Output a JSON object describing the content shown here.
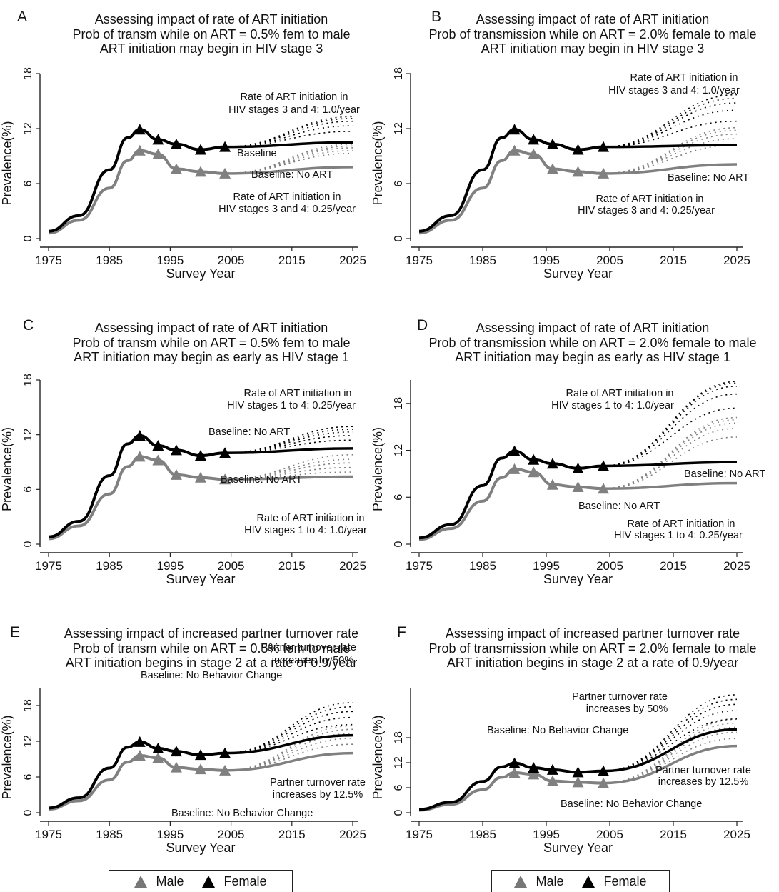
{
  "colors": {
    "male": "#808080",
    "female": "#000000",
    "axis": "#222222"
  },
  "legend": {
    "male_label": "Male",
    "female_label": "Female"
  },
  "chart_data": [
    {
      "panel": "A",
      "type": "line",
      "title": "Assessing impact of rate of ART initiation",
      "subtitle": [
        "Prob of transm while on ART = 0.5% fem to male",
        "ART initiation may begin in HIV stage 3"
      ],
      "xlabel": "Survey Year",
      "ylabel": "Prevalence(%)",
      "xlim": [
        1975,
        2025
      ],
      "ylim": [
        0,
        18
      ],
      "xticks": [
        1975,
        1985,
        1995,
        2005,
        2015,
        2025
      ],
      "yticks": [
        0,
        6,
        12,
        18
      ],
      "series": [
        {
          "name": "Female",
          "x": [
            1975,
            1980,
            1985,
            1988,
            1990,
            1993,
            1996,
            2000,
            2004
          ],
          "values": [
            0.8,
            2.5,
            7.5,
            11,
            11.9,
            10.8,
            10.3,
            9.7,
            10
          ]
        },
        {
          "name": "Male",
          "x": [
            1975,
            1980,
            1985,
            1988,
            1990,
            1993,
            1996,
            2000,
            2004
          ],
          "values": [
            0.6,
            2,
            5.5,
            8.5,
            9.6,
            9.2,
            7.6,
            7.3,
            7.1
          ]
        }
      ],
      "projection_start": 2004,
      "projection_end": 2025,
      "female_end_values": [
        10.5,
        11.7,
        12.3,
        12.8,
        13.1,
        13.3
      ],
      "male_end_values": [
        7.8,
        9.3,
        9.6,
        9.9,
        10.1,
        10.3
      ],
      "annotations": [
        "Rate of ART initiation in",
        "HIV stages 3 and 4: 1.0/year",
        "Baseline",
        "Baseline: No ART",
        "Rate of ART initiation in",
        "HIV stages 3 and 4: 0.25/year"
      ]
    },
    {
      "panel": "B",
      "type": "line",
      "title": "Assessing impact of rate of ART initiation",
      "subtitle": [
        "Prob of transmission while on ART = 2.0% female to male",
        "ART initiation may begin in HIV stage 3"
      ],
      "xlabel": "Survey Year",
      "ylabel": "Prevalence(%)",
      "xlim": [
        1975,
        2025
      ],
      "ylim": [
        0,
        18
      ],
      "xticks": [
        1975,
        1985,
        1995,
        2005,
        2015,
        2025
      ],
      "yticks": [
        0,
        6,
        12,
        18
      ],
      "series": [
        {
          "name": "Female",
          "x": [
            1975,
            1980,
            1985,
            1988,
            1990,
            1993,
            1996,
            2000,
            2004
          ],
          "values": [
            0.8,
            2.5,
            7.5,
            11,
            11.9,
            10.8,
            10.3,
            9.7,
            10
          ]
        },
        {
          "name": "Male",
          "x": [
            1975,
            1980,
            1985,
            1988,
            1990,
            1993,
            1996,
            2000,
            2004
          ],
          "values": [
            0.6,
            2,
            5.5,
            8.5,
            9.6,
            9.2,
            7.6,
            7.3,
            7.1
          ]
        }
      ],
      "projection_start": 2004,
      "projection_end": 2025,
      "female_end_values": [
        10.2,
        12.8,
        14,
        14.8,
        15.3,
        15.7
      ],
      "male_end_values": [
        8.1,
        10.2,
        10.9,
        11.4,
        11.8,
        12.1
      ],
      "annotations": [
        "Rate of ART initiation in",
        "HIV stages 3 and 4: 1.0/year",
        "Baseline: No ART",
        "Rate of ART initiation in",
        "HIV stages 3 and 4: 0.25/year"
      ]
    },
    {
      "panel": "C",
      "type": "line",
      "title": "Assessing impact of rate of ART initiation",
      "subtitle": [
        "Prob of transm while on ART = 0.5% fem to male",
        "ART initiation may begin as early as HIV stage 1"
      ],
      "xlabel": "Survey Year",
      "ylabel": "Prevalence(%)",
      "xlim": [
        1975,
        2025
      ],
      "ylim": [
        0,
        18
      ],
      "xticks": [
        1975,
        1985,
        1995,
        2005,
        2015,
        2025
      ],
      "yticks": [
        0,
        6,
        12,
        18
      ],
      "series": [
        {
          "name": "Female",
          "x": [
            1975,
            1980,
            1985,
            1988,
            1990,
            1993,
            1996,
            2000,
            2004
          ],
          "values": [
            0.8,
            2.5,
            7.5,
            11,
            11.9,
            10.8,
            10.3,
            9.7,
            10
          ]
        },
        {
          "name": "Male",
          "x": [
            1975,
            1980,
            1985,
            1988,
            1990,
            1993,
            1996,
            2000,
            2004
          ],
          "values": [
            0.6,
            2,
            5.5,
            8.5,
            9.6,
            9.2,
            7.6,
            7.3,
            7.1
          ]
        }
      ],
      "projection_start": 2004,
      "projection_end": 2025,
      "female_end_values": [
        10.5,
        11.4,
        11.9,
        12.3,
        12.6,
        12.9
      ],
      "male_end_values": [
        7.4,
        7.9,
        8.4,
        8.9,
        9.3,
        9.8
      ],
      "annotations": [
        "Rate of ART initiation in",
        "HIV stages 1 to 4: 0.25/year",
        "Baseline: No ART",
        "Baseline: No ART",
        "Rate of ART initiation in",
        "HIV stages 1 to 4: 1.0/year"
      ]
    },
    {
      "panel": "D",
      "type": "line",
      "title": "Assessing impact of rate of ART initiation",
      "subtitle": [
        "Prob of transmission while on ART = 2.0% female to male",
        "ART initiation may begin as early as HIV stage 1"
      ],
      "xlabel": "Survey Year",
      "ylabel": "Prevalence(%)",
      "xlim": [
        1975,
        2025
      ],
      "ylim": [
        0,
        21
      ],
      "xticks": [
        1975,
        1985,
        1995,
        2005,
        2015,
        2025
      ],
      "yticks": [
        0,
        6,
        12,
        18
      ],
      "series": [
        {
          "name": "Female",
          "x": [
            1975,
            1980,
            1985,
            1988,
            1990,
            1993,
            1996,
            2000,
            2004
          ],
          "values": [
            0.8,
            2.5,
            7.5,
            11,
            11.9,
            10.8,
            10.3,
            9.7,
            10
          ]
        },
        {
          "name": "Male",
          "x": [
            1975,
            1980,
            1985,
            1988,
            1990,
            1993,
            1996,
            2000,
            2004
          ],
          "values": [
            0.6,
            2,
            5.5,
            8.5,
            9.6,
            9.2,
            7.6,
            7.3,
            7.1
          ]
        }
      ],
      "projection_start": 2004,
      "projection_end": 2025,
      "female_end_values": [
        10.5,
        17.4,
        19.2,
        20.2,
        20.6,
        20.8
      ],
      "male_end_values": [
        7.8,
        13.7,
        14.8,
        15.5,
        15.9,
        16.2
      ],
      "annotations": [
        "Rate of ART initiation in",
        "HIV stages 1 to 4: 1.0/year",
        "Baseline: No ART",
        "Baseline: No ART",
        "Rate of ART initiation in",
        "HIV stages 1 to 4: 0.25/year"
      ]
    },
    {
      "panel": "E",
      "type": "line",
      "title": "Assessing impact of increased partner turnover rate",
      "subtitle": [
        "Prob of transm while on ART = 0.5% fem to male",
        "ART initiation begins in stage 2 at a rate of 0.9/year"
      ],
      "xlabel": "Survey Year",
      "ylabel": "Prevalence(%)",
      "xlim": [
        1975,
        2025
      ],
      "ylim": [
        0,
        21
      ],
      "xticks": [
        1975,
        1985,
        1995,
        2005,
        2015,
        2025
      ],
      "yticks": [
        0,
        6,
        12,
        18
      ],
      "series": [
        {
          "name": "Female",
          "x": [
            1975,
            1980,
            1985,
            1988,
            1990,
            1993,
            1996,
            2000,
            2004
          ],
          "values": [
            0.8,
            2.5,
            7.5,
            11,
            11.9,
            10.8,
            10.3,
            9.7,
            10
          ]
        },
        {
          "name": "Male",
          "x": [
            1975,
            1980,
            1985,
            1988,
            1990,
            1993,
            1996,
            2000,
            2004
          ],
          "values": [
            0.6,
            2,
            5.5,
            8.5,
            9.6,
            9.2,
            7.6,
            7.3,
            7.1
          ]
        }
      ],
      "projection_start": 2004,
      "projection_end": 2025,
      "female_end_values": [
        13,
        14.8,
        16,
        17,
        17.8,
        18.5
      ],
      "male_end_values": [
        10,
        11.5,
        12.5,
        13.3,
        14,
        14.6
      ],
      "annotations": [
        "Partner turnover rate",
        "increases by 50%",
        "Baseline: No Behavior Change",
        "Partner turnover rate",
        "increases by 12.5%",
        "Baseline: No Behavior Change"
      ]
    },
    {
      "panel": "F",
      "type": "line",
      "title": "Assessing impact of increased partner turnover rate",
      "subtitle": [
        "Prob of transmission while on ART = 2.0% female to male",
        "ART initiation begins in stage 2 at a rate of 0.9/year"
      ],
      "xlabel": "Survey Year",
      "ylabel": "Prevalence(%)",
      "xlim": [
        1975,
        2025
      ],
      "ylim": [
        0,
        30
      ],
      "xticks": [
        1975,
        1985,
        1995,
        2005,
        2015,
        2025
      ],
      "yticks": [
        0,
        6,
        12,
        18
      ],
      "series": [
        {
          "name": "Female",
          "x": [
            1975,
            1980,
            1985,
            1988,
            1990,
            1993,
            1996,
            2000,
            2004
          ],
          "values": [
            0.8,
            2.5,
            7.5,
            11,
            11.9,
            10.8,
            10.3,
            9.7,
            10
          ]
        },
        {
          "name": "Male",
          "x": [
            1975,
            1980,
            1985,
            1988,
            1990,
            1993,
            1996,
            2000,
            2004
          ],
          "values": [
            0.6,
            2,
            5.5,
            8.5,
            9.6,
            9.2,
            7.6,
            7.3,
            7.1
          ]
        }
      ],
      "projection_start": 2004,
      "projection_end": 2025,
      "female_end_values": [
        20,
        22.5,
        24.5,
        26,
        27.2,
        28.3
      ],
      "male_end_values": [
        16,
        17.8,
        19.3,
        20.5,
        21.5,
        22.4
      ],
      "annotations": [
        "Partner turnover rate",
        "increases by 50%",
        "Baseline: No Behavior Change",
        "Partner turnover rate",
        "increases by 12.5%",
        "Baseline: No Behavior Change"
      ]
    }
  ]
}
